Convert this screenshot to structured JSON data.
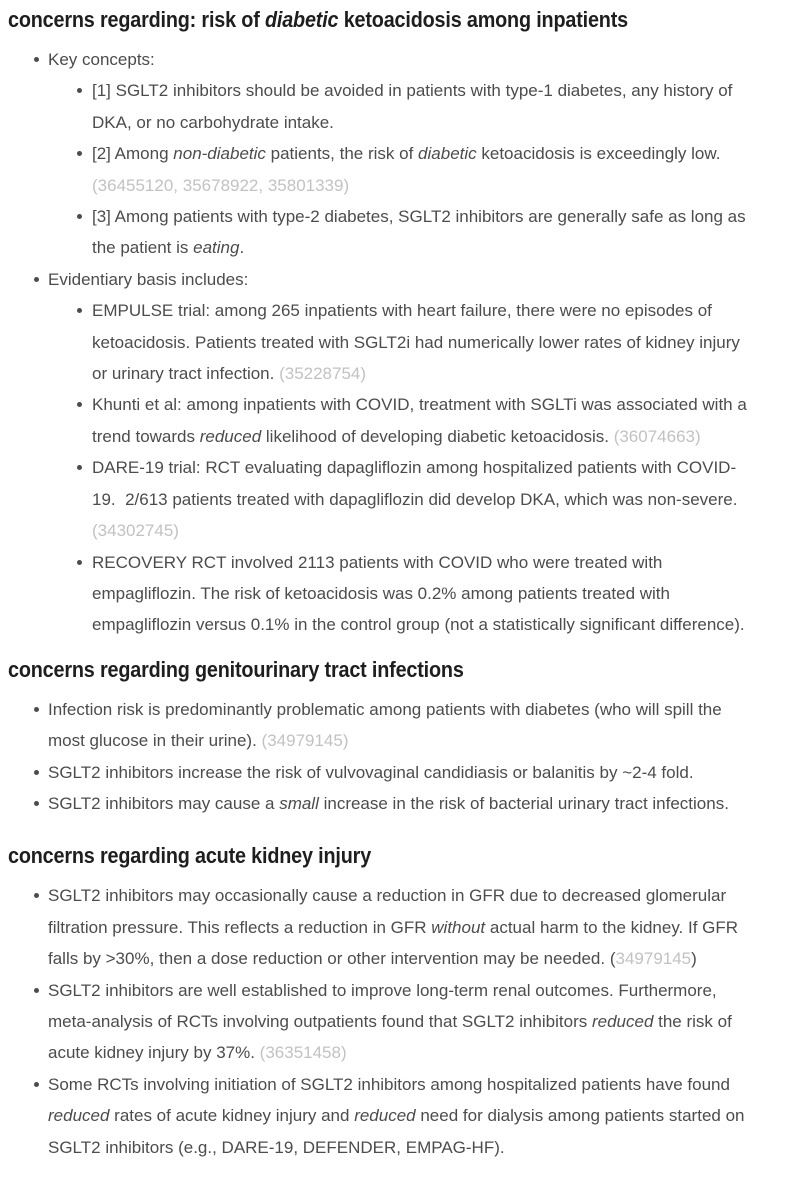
{
  "page": {
    "background": "#ffffff",
    "colors": {
      "heading": "#1e1e1e",
      "body_text": "#4c4c4c",
      "citation": "#c2c2c2"
    }
  },
  "sections": [
    {
      "id": "dka",
      "heading": [
        {
          "t": "concerns regarding: risk of "
        },
        {
          "t": "diabetic",
          "i": true
        },
        {
          "t": " ketoacidosis among inpatients"
        }
      ],
      "items": [
        {
          "level": 1,
          "runs": [
            {
              "t": "Key concepts:"
            }
          ]
        },
        {
          "level": 2,
          "runs": [
            {
              "t": "[1] SGLT2 inhibitors should be avoided in patients with type-1 diabetes, any history of DKA, or no carbohydrate intake."
            }
          ]
        },
        {
          "level": 2,
          "runs": [
            {
              "t": "[2] Among "
            },
            {
              "t": "non-diabetic",
              "i": true
            },
            {
              "t": " patients, the risk of "
            },
            {
              "t": "diabetic",
              "i": true
            },
            {
              "t": " ketoacidosis is exceedingly low. "
            },
            {
              "t": "(36455120, 35678922, 35801339)",
              "cite": true
            }
          ]
        },
        {
          "level": 2,
          "runs": [
            {
              "t": "[3] Among patients with type-2 diabetes, SGLT2 inhibitors are generally safe as long as the patient is "
            },
            {
              "t": "eating",
              "i": true
            },
            {
              "t": "."
            }
          ]
        },
        {
          "level": 1,
          "runs": [
            {
              "t": "Evidentiary basis includes:"
            }
          ]
        },
        {
          "level": 2,
          "runs": [
            {
              "t": "EMPULSE trial: among 265 inpatients with heart failure, there were no episodes of ketoacidosis. Patients treated with SGLT2i had numerically lower rates of kidney injury or urinary tract infection. "
            },
            {
              "t": "(35228754)",
              "cite": true
            }
          ]
        },
        {
          "level": 2,
          "runs": [
            {
              "t": "Khunti et al: among inpatients with COVID, treatment with SGLTi was associated with a trend towards "
            },
            {
              "t": "reduced",
              "i": true
            },
            {
              "t": " likelihood of developing diabetic ketoacidosis. "
            },
            {
              "t": "(36074663)",
              "cite": true
            }
          ]
        },
        {
          "level": 2,
          "runs": [
            {
              "t": "DARE-19 trial: RCT evaluating dapagliflozin among hospitalized patients with COVID-19.  2/613 patients treated with dapagliflozin did develop DKA, which was non-severe. "
            },
            {
              "t": "(34302745)",
              "cite": true
            }
          ]
        },
        {
          "level": 2,
          "runs": [
            {
              "t": "RECOVERY RCT involved 2113 patients with COVID who were treated with empagliflozin. The risk of ketoacidosis was 0.2% among patients treated with empagliflozin versus 0.1% in the control group (not a statistically significant difference)."
            }
          ]
        }
      ]
    },
    {
      "id": "gu",
      "heading": [
        {
          "t": "concerns regarding genitourinary tract infections"
        }
      ],
      "items": [
        {
          "level": 1,
          "runs": [
            {
              "t": "Infection risk is predominantly problematic among patients with diabetes (who will spill the most glucose in their urine). "
            },
            {
              "t": "(34979145)",
              "cite": true
            }
          ]
        },
        {
          "level": 1,
          "runs": [
            {
              "t": "SGLT2 inhibitors increase the risk of vulvovaginal candidiasis or balanitis by ~2-4 fold."
            }
          ]
        },
        {
          "level": 1,
          "runs": [
            {
              "t": "SGLT2 inhibitors may cause a "
            },
            {
              "t": "small",
              "i": true
            },
            {
              "t": " increase in the risk of bacterial urinary tract infections."
            }
          ]
        }
      ]
    },
    {
      "id": "aki",
      "heading": [
        {
          "t": "concerns regarding acute kidney injury"
        }
      ],
      "items": [
        {
          "level": 1,
          "runs": [
            {
              "t": "SGLT2 inhibitors may occasionally cause a reduction in GFR due to decreased glomerular filtration pressure. This reflects a reduction in GFR "
            },
            {
              "t": "without",
              "i": true
            },
            {
              "t": " actual harm to the kidney. If GFR falls by >30%, then a dose reduction or other intervention may be needed. ("
            },
            {
              "t": "34979145",
              "cite": true
            },
            {
              "t": ")"
            }
          ]
        },
        {
          "level": 1,
          "runs": [
            {
              "t": "SGLT2 inhibitors are well established to improve long-term renal outcomes. Furthermore, meta-analysis of RCTs involving outpatients found that SGLT2 inhibitors "
            },
            {
              "t": "reduced",
              "i": true
            },
            {
              "t": " the risk of acute kidney injury by 37%. "
            },
            {
              "t": "(36351458)",
              "cite": true
            }
          ]
        },
        {
          "level": 1,
          "runs": [
            {
              "t": "Some RCTs involving initiation of SGLT2 inhibitors among hospitalized patients have found "
            },
            {
              "t": "reduced",
              "i": true
            },
            {
              "t": " rates of acute kidney injury and "
            },
            {
              "t": "reduced",
              "i": true
            },
            {
              "t": " need for dialysis among patients started on SGLT2 inhibitors (e.g., DARE-19, DEFENDER, EMPAG-HF)."
            }
          ]
        }
      ]
    }
  ]
}
